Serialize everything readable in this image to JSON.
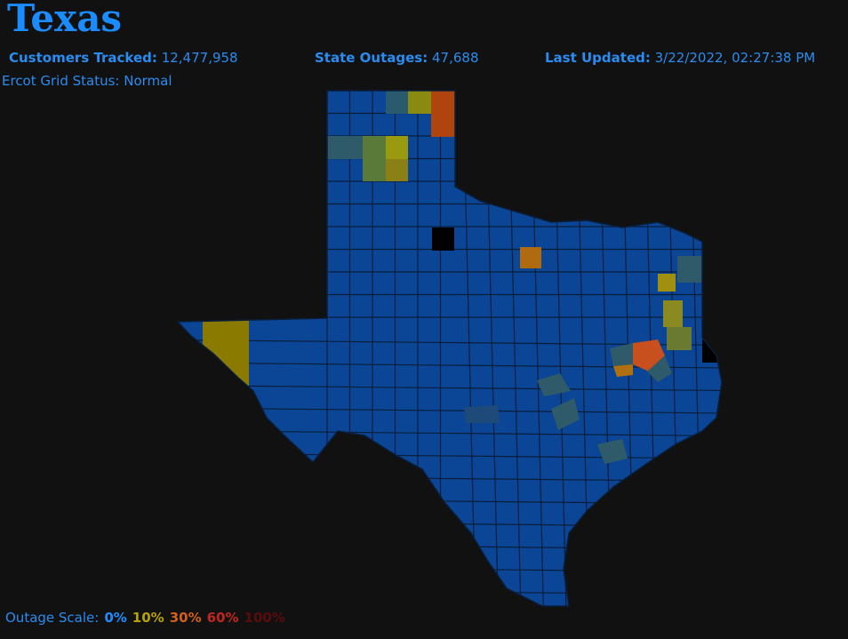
{
  "header": {
    "title": "Texas"
  },
  "stats": [
    {
      "label": "Customers Tracked:",
      "value": "12,477,958"
    },
    {
      "label": "State Outages:",
      "value": "47,688"
    },
    {
      "label": "Last Updated:",
      "value": "3/22/2022, 02:27:38 PM"
    }
  ],
  "grid_status": "Ercot Grid Status: Normal",
  "legend": {
    "label": "Outage Scale:",
    "items": [
      {
        "label": "0%",
        "color": "#1e8cff"
      },
      {
        "label": "10%",
        "color": "#b8a200"
      },
      {
        "label": "30%",
        "color": "#d2601a"
      },
      {
        "label": "60%",
        "color": "#c0281e"
      },
      {
        "label": "100%",
        "color": "#5a0c0c"
      }
    ]
  }
}
